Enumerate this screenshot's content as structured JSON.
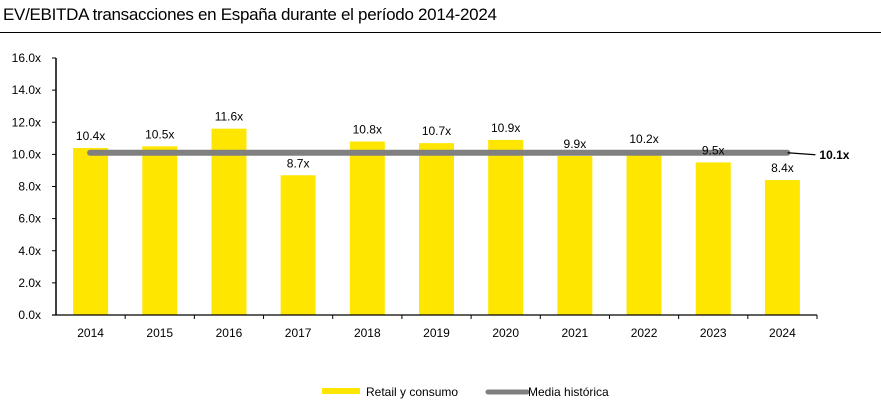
{
  "chart_data": {
    "type": "bar",
    "title": "EV/EBITDA transacciones en España durante el período 2014-2024",
    "xlabel": "",
    "ylabel": "",
    "categories": [
      "2014",
      "2015",
      "2016",
      "2017",
      "2018",
      "2019",
      "2020",
      "2021",
      "2022",
      "2023",
      "2024"
    ],
    "series": [
      {
        "name": "Retail y consumo",
        "type": "bar",
        "color": "#FFE600",
        "values": [
          10.4,
          10.5,
          11.6,
          8.7,
          10.8,
          10.7,
          10.9,
          9.9,
          10.2,
          9.5,
          8.4
        ],
        "labels": [
          "10.4x",
          "10.5x",
          "11.6x",
          "8.7x",
          "10.8x",
          "10.7x",
          "10.9x",
          "9.9x",
          "10.2x",
          "9.5x",
          "8.4x"
        ]
      },
      {
        "name": "Media histórica",
        "type": "line",
        "color": "#808080",
        "value": 10.1,
        "label": "10.1x"
      }
    ],
    "ylim": [
      0,
      16
    ],
    "yticks": [
      0,
      2,
      4,
      6,
      8,
      10,
      12,
      14,
      16
    ],
    "ytick_labels": [
      "0.0x",
      "2.0x",
      "4.0x",
      "6.0x",
      "8.0x",
      "10.0x",
      "12.0x",
      "14.0x",
      "16.0x"
    ],
    "grid": false,
    "legend": {
      "position": "bottom-center",
      "entries": [
        "Retail y consumo",
        "Media histórica"
      ]
    }
  }
}
